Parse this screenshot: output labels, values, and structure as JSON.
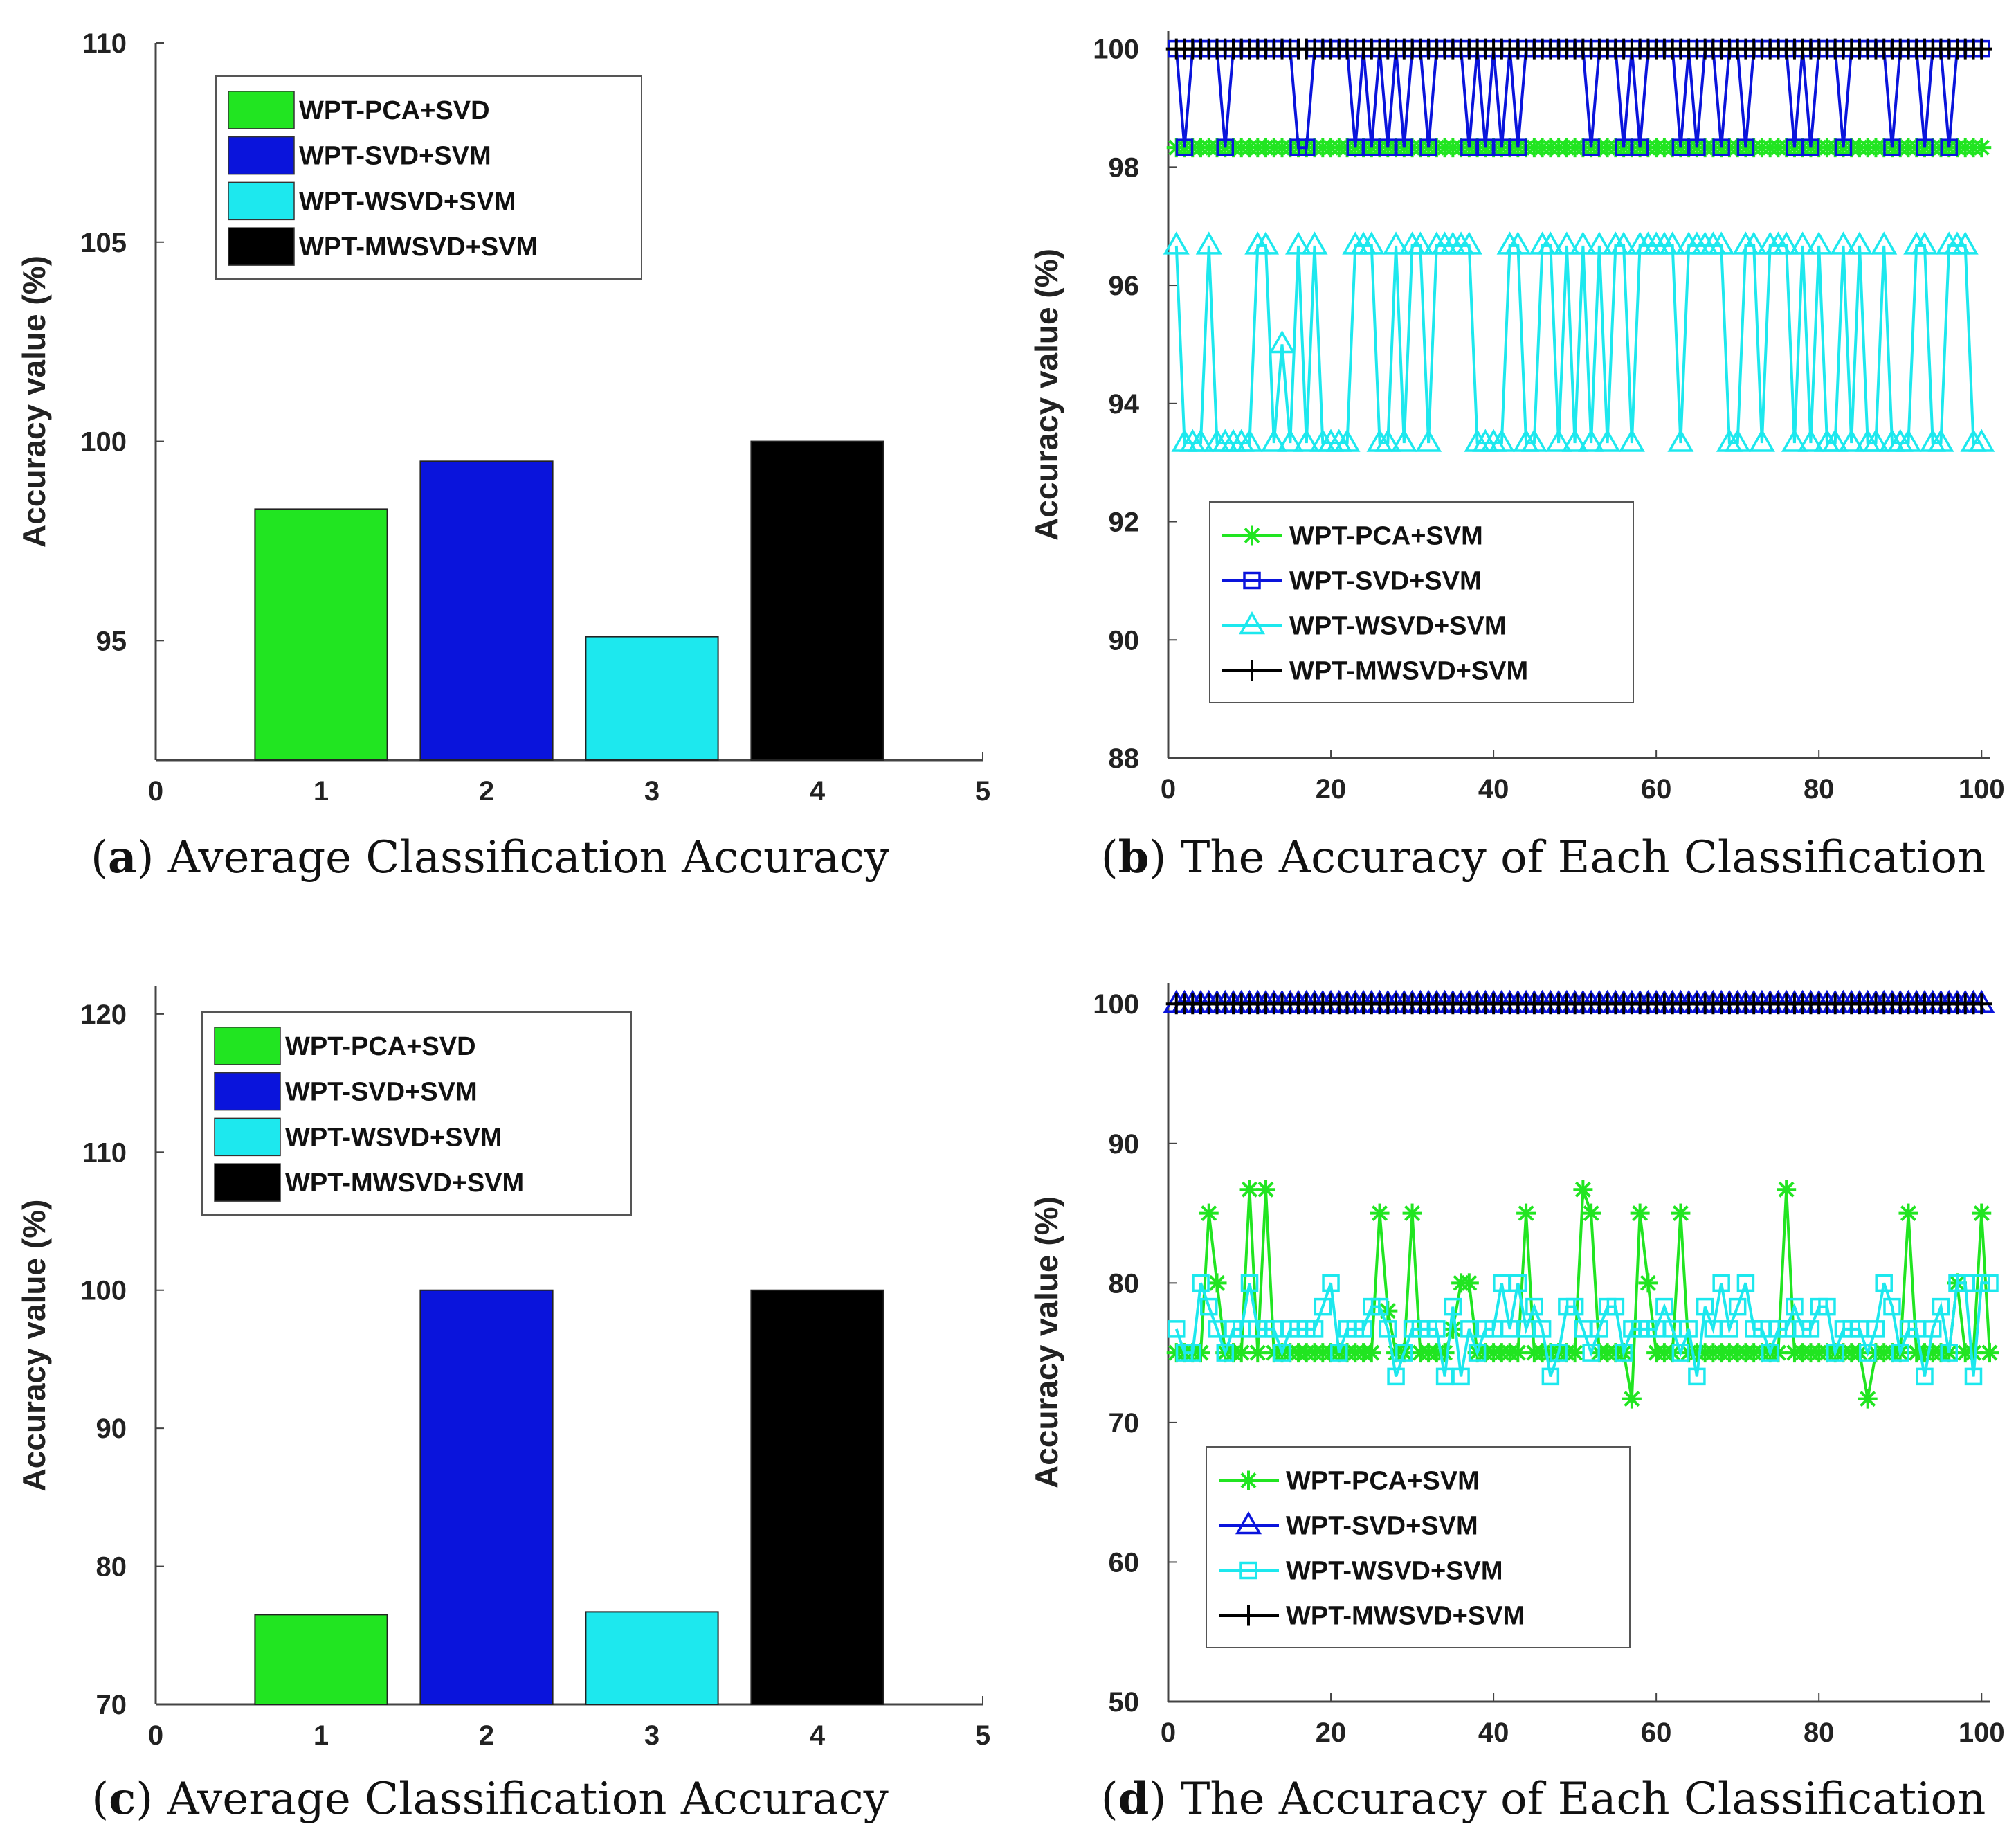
{
  "colors": {
    "green": "#21e521",
    "blue": "#0a14dc",
    "cyan": "#1de8ee",
    "black": "#000000",
    "axis": "#444444"
  },
  "captions": [
    {
      "letter": "a",
      "text": "Average Classification Accuracy"
    },
    {
      "letter": "b",
      "text": "The Accuracy of Each Classification"
    },
    {
      "letter": "c",
      "text": "Average Classification Accuracy"
    },
    {
      "letter": "d",
      "text": "The Accuracy of Each Classification"
    }
  ],
  "chart_data": [
    {
      "id": "a",
      "type": "bar",
      "ylabel": "Accuracy value (%)",
      "xlim": [
        0,
        5
      ],
      "ylim": [
        92,
        110
      ],
      "xticks": [
        "0",
        "1",
        "2",
        "3",
        "4",
        "5"
      ],
      "yticks": [
        "95",
        "100",
        "105",
        "110"
      ],
      "legend_position": "top-left",
      "categories": [
        1,
        2,
        3,
        4
      ],
      "series": [
        {
          "name": "WPT-PCA+SVD",
          "color": "green",
          "value": 98.3
        },
        {
          "name": "WPT-SVD+SVM",
          "color": "blue",
          "value": 99.5
        },
        {
          "name": "WPT-WSVD+SVM",
          "color": "cyan",
          "value": 95.1
        },
        {
          "name": "WPT-MWSVD+SVM",
          "color": "black",
          "value": 100.0
        }
      ]
    },
    {
      "id": "b",
      "type": "line",
      "ylabel": "Accuracy value (%)",
      "xlim": [
        0,
        101
      ],
      "ylim": [
        88,
        100.3
      ],
      "xticks": [
        "0",
        "20",
        "40",
        "60",
        "80",
        "100"
      ],
      "yticks": [
        "88",
        "90",
        "92",
        "94",
        "96",
        "98",
        "100"
      ],
      "legend_position": "bottom-left",
      "series": [
        {
          "name": "WPT-PCA+SVM",
          "color": "green",
          "marker": "star",
          "base": 98.33,
          "alt": 98.33,
          "alt_points": []
        },
        {
          "name": "WPT-SVD+SVM",
          "color": "blue",
          "marker": "square",
          "base": 100,
          "alt": 98.33,
          "alt_points": [
            2,
            7,
            16,
            17,
            23,
            25,
            27,
            29,
            32,
            37,
            39,
            41,
            43,
            52,
            56,
            58,
            63,
            65,
            68,
            71,
            77,
            79,
            83,
            89,
            93,
            96
          ]
        },
        {
          "name": "WPT-WSVD+SVM",
          "color": "cyan",
          "marker": "triangle",
          "base": 96.67,
          "alt": 93.33,
          "alt_points": [
            2,
            3,
            4,
            6,
            7,
            8,
            9,
            10,
            13,
            15,
            17,
            19,
            20,
            21,
            22,
            26,
            27,
            29,
            32,
            38,
            39,
            40,
            41,
            44,
            45,
            48,
            50,
            52,
            54,
            57,
            63,
            69,
            70,
            73,
            77,
            79,
            81,
            82,
            84,
            86,
            87,
            89,
            90,
            91,
            94,
            95,
            99,
            100
          ],
          "special_points": [
            [
              14,
              95.0
            ]
          ]
        },
        {
          "name": "WPT-MWSVD+SVM",
          "color": "black",
          "marker": "plus",
          "base": 100,
          "alt": 100,
          "alt_points": []
        }
      ]
    },
    {
      "id": "c",
      "type": "bar",
      "ylabel": "Accuracy value (%)",
      "xlim": [
        0,
        5
      ],
      "ylim": [
        70,
        122
      ],
      "xticks": [
        "0",
        "1",
        "2",
        "3",
        "4",
        "5"
      ],
      "yticks": [
        "70",
        "80",
        "90",
        "100",
        "110",
        "120"
      ],
      "legend_position": "top-left",
      "categories": [
        1,
        2,
        3,
        4
      ],
      "series": [
        {
          "name": "WPT-PCA+SVD",
          "color": "green",
          "value": 76.5
        },
        {
          "name": "WPT-SVD+SVM",
          "color": "blue",
          "value": 100.0
        },
        {
          "name": "WPT-WSVD+SVM",
          "color": "cyan",
          "value": 76.7
        },
        {
          "name": "WPT-MWSVD+SVM",
          "color": "black",
          "value": 100.0
        }
      ]
    },
    {
      "id": "d",
      "type": "line",
      "ylabel": "Accuracy value (%)",
      "xlim": [
        0,
        101
      ],
      "ylim": [
        50,
        101.5
      ],
      "xticks": [
        "0",
        "20",
        "40",
        "60",
        "80",
        "100"
      ],
      "yticks": [
        "50",
        "60",
        "70",
        "80",
        "90",
        "100"
      ],
      "legend_position": "bottom-left",
      "series": [
        {
          "name": "WPT-PCA+SVM",
          "color": "green",
          "marker": "star",
          "values": [
            75,
            75,
            75,
            75,
            85,
            80,
            75,
            75,
            75,
            86.7,
            75,
            86.7,
            75,
            75,
            75,
            75,
            75,
            75,
            75,
            75,
            75,
            75,
            75,
            75,
            75,
            85,
            78,
            75,
            75,
            85,
            75,
            75,
            75,
            75,
            76.7,
            80,
            80,
            75,
            75,
            75,
            75,
            75,
            75,
            85,
            75,
            75,
            75,
            75,
            75,
            75,
            86.7,
            85,
            75,
            75,
            75,
            75,
            71.7,
            85,
            80,
            75,
            75,
            75,
            85,
            75,
            75,
            75,
            75,
            75,
            75,
            75,
            75,
            75,
            75,
            75,
            75,
            86.7,
            75,
            75,
            75,
            75,
            75,
            75,
            75,
            75,
            75,
            71.7,
            75,
            75,
            75,
            75,
            85,
            75,
            75,
            75,
            75,
            75,
            80,
            75,
            75,
            85,
            75
          ]
        },
        {
          "name": "WPT-SVD+SVM",
          "color": "blue",
          "marker": "triangle",
          "constant": 100
        },
        {
          "name": "WPT-WSVD+SVM",
          "color": "cyan",
          "marker": "square",
          "values": [
            76.7,
            75,
            75,
            80,
            78.3,
            76.7,
            75,
            76.7,
            76.7,
            80,
            76.7,
            76.7,
            76.7,
            75,
            76.7,
            76.7,
            76.7,
            76.7,
            78.3,
            80,
            75,
            76.7,
            76.7,
            76.7,
            78.3,
            78.3,
            76.7,
            73.3,
            75,
            76.7,
            76.7,
            76.7,
            76.7,
            73.3,
            78.3,
            73.3,
            76.7,
            75,
            76.7,
            76.7,
            80,
            76.7,
            80,
            76.7,
            78.3,
            76.7,
            73.3,
            75,
            78.3,
            78.3,
            76.7,
            75,
            76.7,
            78.3,
            78.3,
            75,
            76.7,
            76.7,
            76.7,
            76.7,
            78.3,
            76.7,
            75,
            76.7,
            73.3,
            78.3,
            76.7,
            80,
            76.7,
            78.3,
            80,
            76.7,
            76.7,
            75,
            76.7,
            76.7,
            78.3,
            76.7,
            76.7,
            78.3,
            78.3,
            75,
            76.7,
            76.7,
            76.7,
            75,
            76.7,
            80,
            78.3,
            75,
            76.7,
            76.7,
            73.3,
            76.7,
            78.3,
            75,
            80,
            80,
            73.3,
            80,
            80
          ]
        },
        {
          "name": "WPT-MWSVD+SVM",
          "color": "black",
          "marker": "plus",
          "constant": 100
        }
      ]
    }
  ]
}
